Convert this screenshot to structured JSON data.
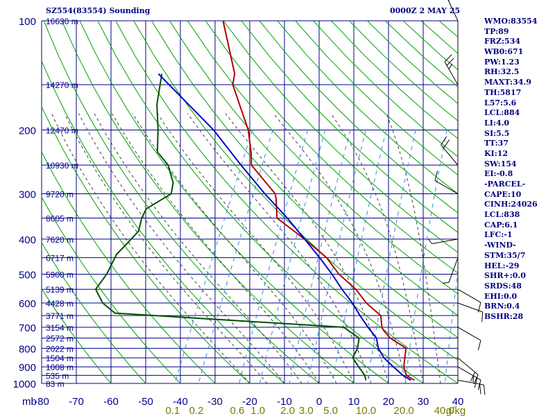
{
  "header": {
    "station": "SZ554(83554) Sounding",
    "time": "0000Z  2 MAY 25"
  },
  "stats": [
    "WMO:83554",
    "TP:89",
    "FRZ:534",
    "WB0:671",
    "PW:1.23",
    "RH:32.5",
    "MAXT:34.9",
    "TH:5817",
    "L57:5.6",
    "LCL:884",
    "LI:4.0",
    "SI:5.5",
    "TT:37",
    "KI:12",
    "SW:154",
    "EI:-0.8",
    "-PARCEL-",
    "CAPE:10",
    "CINH:24026",
    "LCL:838",
    "CAP:6.1",
    "LFC:-1",
    "-WIND-",
    "STM:35/7",
    "HEL:-29",
    "SHR+:0.0",
    "SRDS:48",
    "EHI:0.0",
    "BRN:0.4",
    "BSHR:28"
  ],
  "colors": {
    "grid": "#00008b",
    "dry_adiabat": "#00a000",
    "moist_adiabat": "#404040",
    "mixing_ratio": "#2e8bdc",
    "temperature": "#b00000",
    "dewpoint": "#005000",
    "parcel": "#0000c0",
    "axis_text": "#00008b",
    "mixing_text": "#7a7a00"
  },
  "chart_data": {
    "type": "line",
    "diagram": "skew-t log-p",
    "pressure_unit": "mb",
    "pressure_ticks": [
      100,
      200,
      300,
      400,
      500,
      600,
      700,
      800,
      900,
      1000
    ],
    "temperature_ticks": [
      -80,
      -70,
      -60,
      -50,
      -40,
      -30,
      -20,
      -10,
      0,
      10,
      20,
      30,
      40
    ],
    "x_unit": "mb",
    "mixing_ratio_ticks": [
      0.1,
      0.2,
      0.6,
      1.0,
      2.0,
      3.0,
      5.0,
      10.0,
      20.0,
      40.0
    ],
    "mixing_ratio_unit": "g/kg",
    "heights": [
      {
        "p": 100,
        "label": "16630 m"
      },
      {
        "p": 150,
        "label": "14270 m"
      },
      {
        "p": 200,
        "label": "12470 m"
      },
      {
        "p": 250,
        "label": "10930 m"
      },
      {
        "p": 300,
        "label": "9720 m"
      },
      {
        "p": 350,
        "label": "8605 m"
      },
      {
        "p": 400,
        "label": "7620 m"
      },
      {
        "p": 450,
        "label": "6717 m"
      },
      {
        "p": 500,
        "label": "5900 m"
      },
      {
        "p": 550,
        "label": "5139 m"
      },
      {
        "p": 600,
        "label": "4428 m"
      },
      {
        "p": 650,
        "label": "3771 m"
      },
      {
        "p": 700,
        "label": "3154 m"
      },
      {
        "p": 750,
        "label": "2572 m"
      },
      {
        "p": 800,
        "label": "2022 m"
      },
      {
        "p": 850,
        "label": "1504 m"
      },
      {
        "p": 900,
        "label": "1008 m"
      },
      {
        "p": 950,
        "label": "535 m"
      },
      {
        "p": 1000,
        "label": "83 m"
      }
    ],
    "series": [
      {
        "key": "temperature",
        "points": [
          [
            100,
            -80
          ],
          [
            140,
            -69
          ],
          [
            150,
            -68
          ],
          [
            200,
            -57
          ],
          [
            230,
            -53
          ],
          [
            250,
            -51
          ],
          [
            300,
            -40
          ],
          [
            310,
            -39
          ],
          [
            350,
            -36
          ],
          [
            400,
            -25
          ],
          [
            450,
            -16
          ],
          [
            500,
            -10
          ],
          [
            550,
            -3
          ],
          [
            600,
            2
          ],
          [
            650,
            8
          ],
          [
            700,
            10
          ],
          [
            715,
            11
          ],
          [
            750,
            14
          ],
          [
            800,
            20
          ],
          [
            850,
            21
          ],
          [
            900,
            22
          ],
          [
            950,
            24
          ],
          [
            980,
            27
          ]
        ]
      },
      {
        "key": "dewpoint",
        "points": [
          [
            140,
            -90
          ],
          [
            170,
            -87
          ],
          [
            200,
            -83
          ],
          [
            230,
            -80
          ],
          [
            250,
            -75
          ],
          [
            280,
            -71
          ],
          [
            300,
            -70
          ],
          [
            330,
            -75
          ],
          [
            350,
            -75
          ],
          [
            380,
            -74
          ],
          [
            400,
            -75
          ],
          [
            420,
            -76
          ],
          [
            440,
            -77
          ],
          [
            500,
            -77
          ],
          [
            550,
            -78
          ],
          [
            600,
            -74
          ],
          [
            640,
            -69
          ],
          [
            700,
            -1
          ],
          [
            750,
            5
          ],
          [
            800,
            6
          ],
          [
            850,
            6
          ],
          [
            900,
            9
          ],
          [
            950,
            12
          ],
          [
            980,
            13
          ]
        ]
      },
      {
        "key": "parcel",
        "points": [
          [
            140,
            -91
          ],
          [
            200,
            -67
          ],
          [
            250,
            -54
          ],
          [
            300,
            -43
          ],
          [
            350,
            -33
          ],
          [
            400,
            -25
          ],
          [
            450,
            -18
          ],
          [
            500,
            -12
          ],
          [
            550,
            -7
          ],
          [
            600,
            -2
          ],
          [
            650,
            2
          ],
          [
            700,
            6
          ],
          [
            750,
            10
          ],
          [
            800,
            12
          ],
          [
            850,
            15
          ],
          [
            900,
            19
          ],
          [
            950,
            23
          ],
          [
            980,
            26
          ]
        ]
      }
    ],
    "wind_barbs": [
      {
        "p": 100,
        "dir": 335,
        "spd": 15
      },
      {
        "p": 150,
        "dir": 330,
        "spd": 25
      },
      {
        "p": 250,
        "dir": 320,
        "spd": 20
      },
      {
        "p": 300,
        "dir": 300,
        "spd": 10
      },
      {
        "p": 400,
        "dir": 260,
        "spd": 5
      },
      {
        "p": 450,
        "dir": 200,
        "spd": 5
      },
      {
        "p": 550,
        "dir": 120,
        "spd": 10
      },
      {
        "p": 600,
        "dir": 110,
        "spd": 10
      },
      {
        "p": 700,
        "dir": 120,
        "spd": 10
      },
      {
        "p": 850,
        "dir": 130,
        "spd": 20
      },
      {
        "p": 900,
        "dir": 120,
        "spd": 25
      },
      {
        "p": 980,
        "dir": 100,
        "spd": 20
      }
    ]
  }
}
